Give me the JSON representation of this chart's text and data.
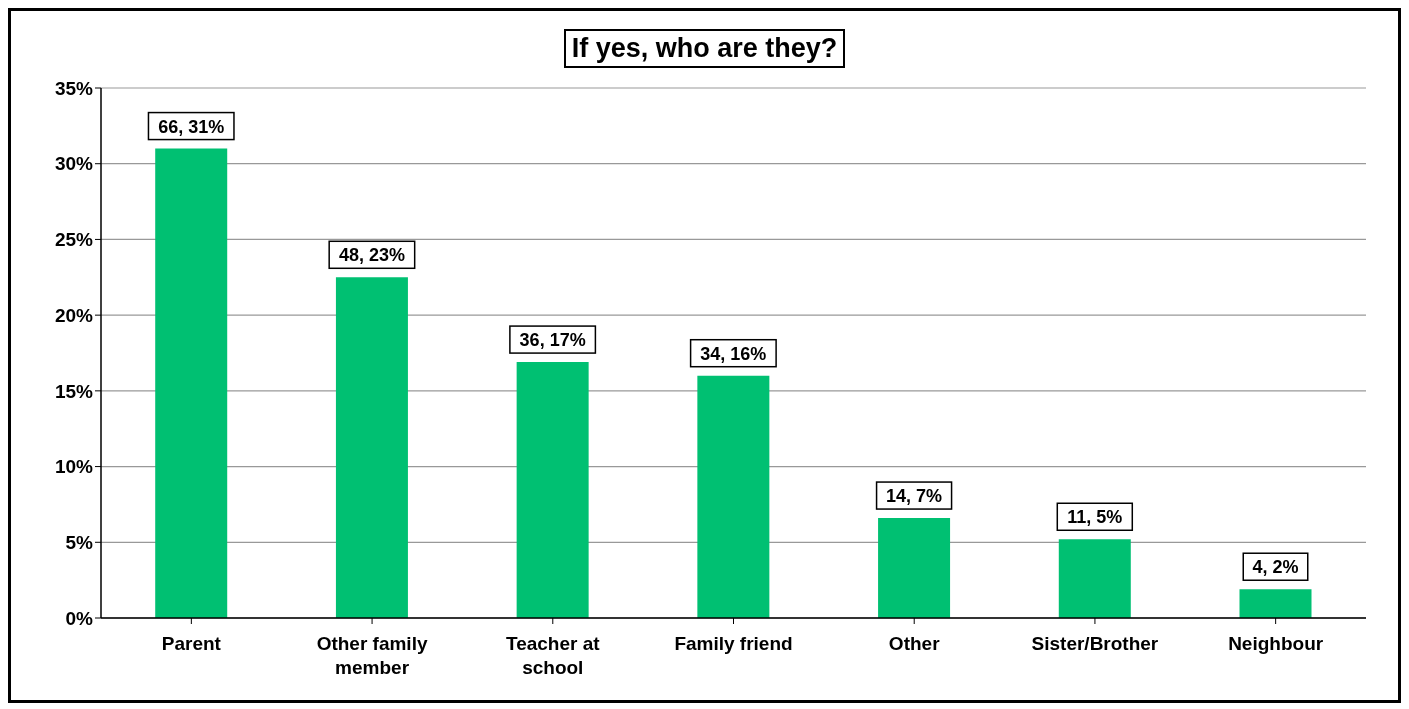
{
  "chart_data": {
    "type": "bar",
    "title": "If yes, who are they?",
    "categories": [
      "Parent",
      "Other family member",
      "Teacher at school",
      "Family friend",
      "Other",
      "Sister/Brother",
      "Neighbour"
    ],
    "values": [
      31,
      22.5,
      16.9,
      16.0,
      6.6,
      5.2,
      1.9
    ],
    "value_labels": [
      "66, 31%",
      "48, 23%",
      "36, 17%",
      "34, 16%",
      "14, 7%",
      "11, 5%",
      "4, 2%"
    ],
    "color": "#00c072",
    "ylim": [
      0,
      35
    ],
    "yticks": [
      {
        "value": 0,
        "label": "0%"
      },
      {
        "value": 5,
        "label": "5%"
      },
      {
        "value": 10,
        "label": "10%"
      },
      {
        "value": 15,
        "label": "15%"
      },
      {
        "value": 20,
        "label": "20%"
      },
      {
        "value": 25,
        "label": "25%"
      },
      {
        "value": 30,
        "label": "30%"
      },
      {
        "value": 35,
        "label": "35%"
      }
    ],
    "grid": "y",
    "legend": false
  }
}
